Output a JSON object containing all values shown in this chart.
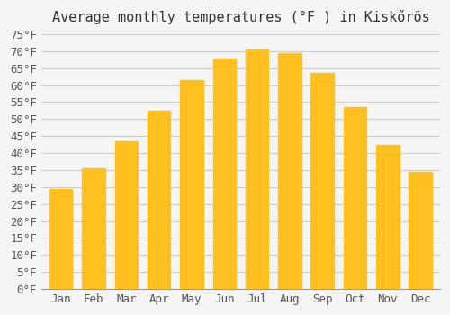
{
  "title": "Average monthly temperatures (°F ) in Kiskőrös",
  "months": [
    "Jan",
    "Feb",
    "Mar",
    "Apr",
    "May",
    "Jun",
    "Jul",
    "Aug",
    "Sep",
    "Oct",
    "Nov",
    "Dec"
  ],
  "values": [
    29.5,
    35.5,
    43.5,
    52.5,
    61.5,
    67.5,
    70.5,
    69.5,
    63.5,
    53.5,
    42.5,
    34.5
  ],
  "bar_color_top": "#FFC020",
  "bar_color_bottom": "#FFB000",
  "background_color": "#f5f5f5",
  "grid_color": "#cccccc",
  "ylim": [
    0,
    75
  ],
  "yticks": [
    0,
    5,
    10,
    15,
    20,
    25,
    30,
    35,
    40,
    45,
    50,
    55,
    60,
    65,
    70,
    75
  ],
  "title_fontsize": 11,
  "tick_fontsize": 9,
  "bar_edge_color": "none"
}
